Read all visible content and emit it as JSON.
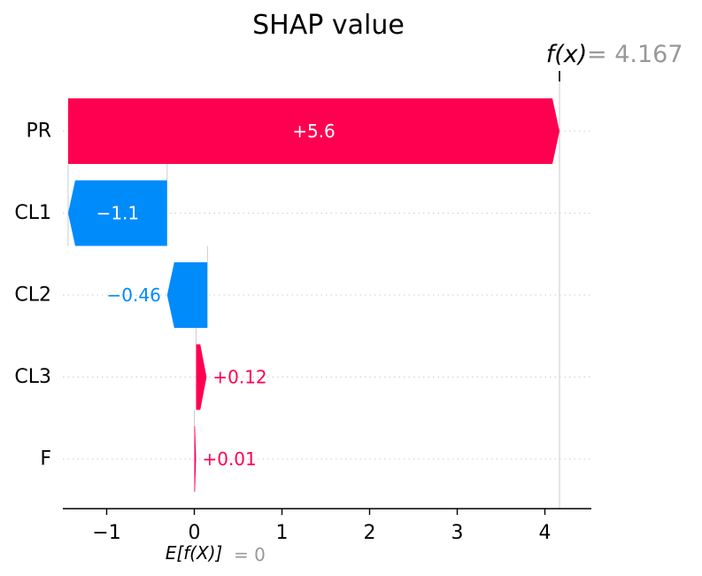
{
  "chart_data": {
    "type": "waterfall",
    "title": "SHAP value",
    "fx_label": "f(x)",
    "fx_value_text": "= 4.167",
    "fx_value": 4.167,
    "base_label": "E[f(X)]",
    "base_value_text": "= 0",
    "base_value": 0,
    "xlim": [
      -1.5,
      4.5
    ],
    "ticks": [
      -1,
      0,
      1,
      2,
      3,
      4
    ],
    "tick_labels": [
      "−1",
      "0",
      "1",
      "2",
      "3",
      "4"
    ],
    "grid": false,
    "features": [
      {
        "name": "PR",
        "value": 5.6,
        "label": "+5.6",
        "start": -1.44,
        "end": 4.167
      },
      {
        "name": "CL1",
        "value": -1.1,
        "label": "−1.1",
        "start": -0.31,
        "end": -1.44
      },
      {
        "name": "CL2",
        "value": -0.46,
        "label": "−0.46",
        "start": 0.15,
        "end": -0.31
      },
      {
        "name": "CL3",
        "value": 0.12,
        "label": "+0.12",
        "start": 0.02,
        "end": 0.14
      },
      {
        "name": "F",
        "value": 0.01,
        "label": "+0.01",
        "start": 0.0,
        "end": 0.02
      }
    ],
    "colors": {
      "positive": "#ff0051",
      "negative": "#008bfb",
      "muted": "#999999",
      "axis": "#000000",
      "guide": "#cccccc"
    }
  }
}
